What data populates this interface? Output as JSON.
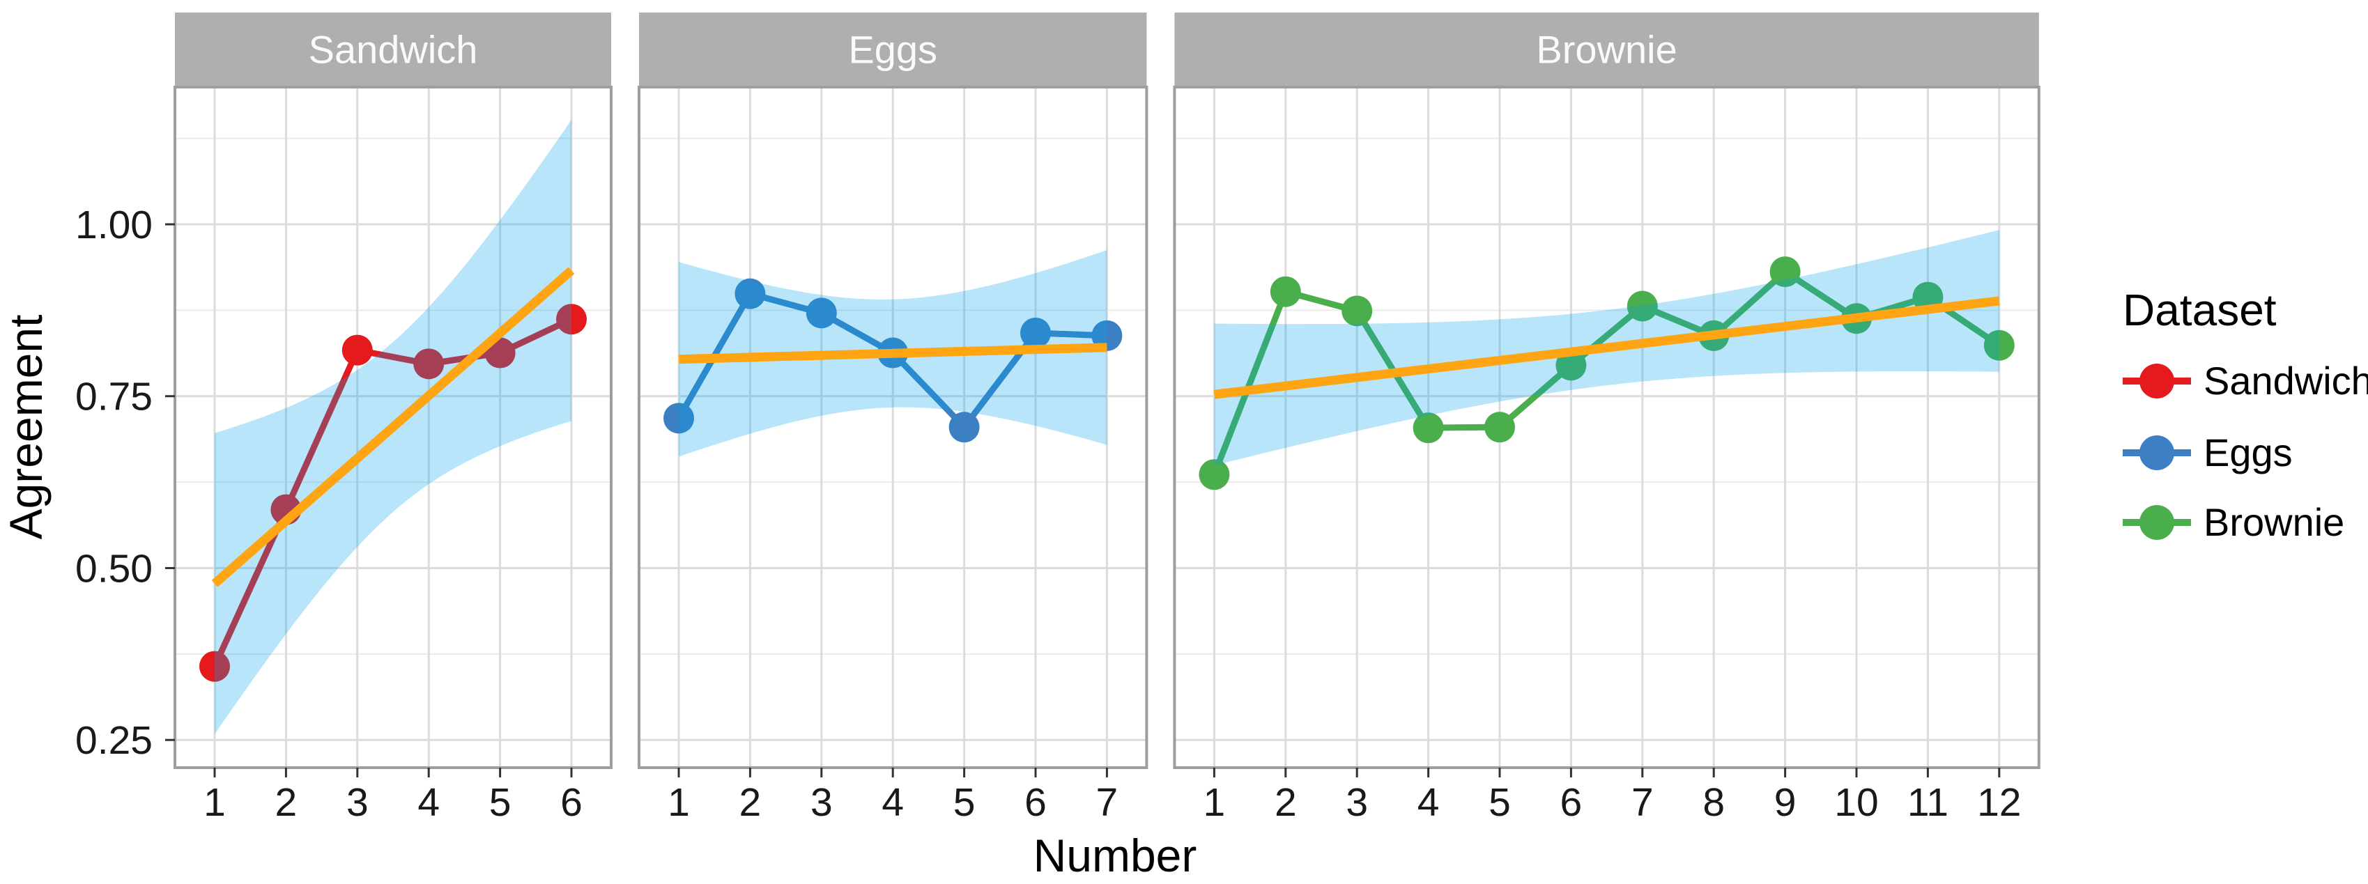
{
  "figure": {
    "x_axis_title": "Number",
    "y_axis_title": "Agreement",
    "legend": {
      "title": "Dataset"
    },
    "colors": {
      "background": "#FFFFFF",
      "panel_background": "#FFFFFF",
      "strip_fill": "#AFAFAF",
      "strip_text": "#FAFAFA",
      "grid_major": "#DBDBDB",
      "grid_minor": "#EBEBEB",
      "panel_border": "#9E9E9E",
      "tick_mark": "#333333",
      "axis_text": "#191919",
      "axis_title": "#000000"
    }
  },
  "chart_data": {
    "type": "line",
    "title": "",
    "xlabel": "Number",
    "ylabel": "Agreement",
    "ylim": [
      0.21,
      1.2
    ],
    "yticks": [
      0.25,
      0.5,
      0.75,
      1.0
    ],
    "ytick_labels": [
      "0.25",
      "0.50",
      "0.75",
      "1.00"
    ],
    "yminor": [
      0.375,
      0.625,
      0.875,
      1.125
    ],
    "grid": "major-xy + minor-y",
    "legend_position": "right",
    "facets": [
      {
        "label": "Sandwich",
        "color": "#E41A1C",
        "x": [
          1,
          2,
          3,
          4,
          5,
          6
        ],
        "y": [
          0.357,
          0.585,
          0.817,
          0.797,
          0.813,
          0.862
        ]
      },
      {
        "label": "Eggs",
        "color": "#3C80C3",
        "x": [
          1,
          2,
          3,
          4,
          5,
          6,
          7
        ],
        "y": [
          0.718,
          0.899,
          0.871,
          0.813,
          0.705,
          0.842,
          0.838
        ]
      },
      {
        "label": "Brownie",
        "color": "#4BAE4C",
        "x": [
          1,
          2,
          3,
          4,
          5,
          6,
          7,
          8,
          9,
          10,
          11,
          12
        ],
        "y": [
          0.636,
          0.902,
          0.874,
          0.704,
          0.705,
          0.795,
          0.881,
          0.838,
          0.931,
          0.863,
          0.894,
          0.824
        ]
      }
    ],
    "smooth": {
      "method": "lm",
      "ci_level": 0.95,
      "line_color": "#FFA513",
      "ribbon_color": "rgba(0,160,235,0.28)",
      "ribbon_over_white": "#B7E4F8"
    }
  }
}
